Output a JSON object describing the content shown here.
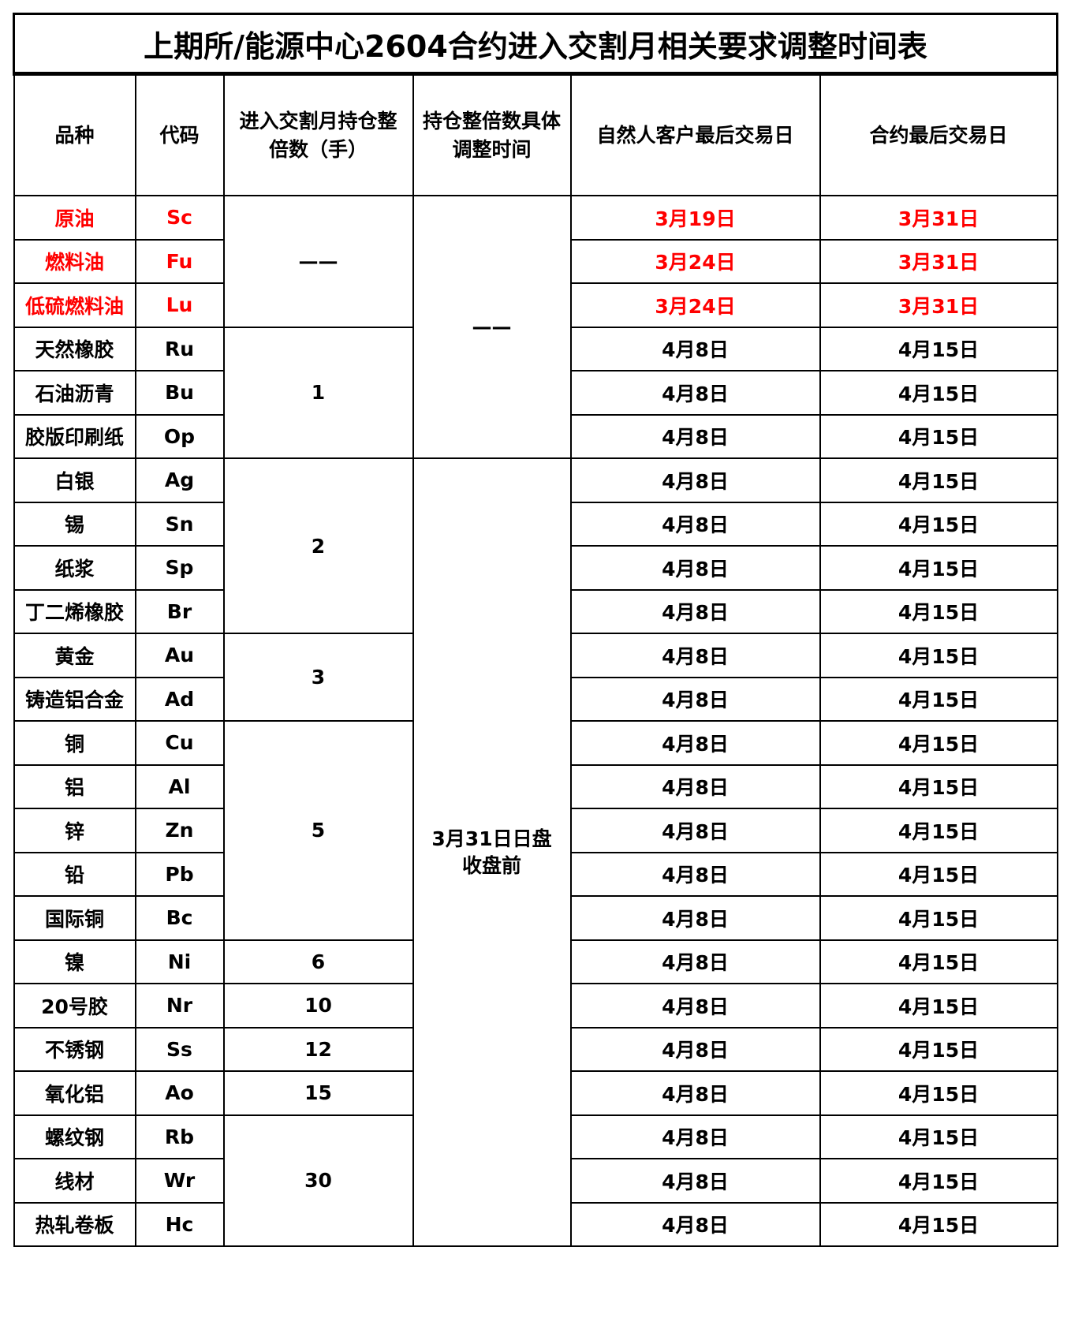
{
  "title": "上期所/能源中心2604合约进入交割月相关要求调整时间表",
  "headers": [
    "品种",
    "代码",
    "进入交割月持仓整倍数（手）",
    "持仓整倍数具体调整时间",
    "自然人客户最后交易日",
    "合约最后交易日"
  ],
  "highlight_color": "#ff0000",
  "rows": [
    {
      "name": "原油",
      "code": "Sc",
      "natural_last": "3月19日",
      "contract_last": "3月31日",
      "highlight": true
    },
    {
      "name": "燃料油",
      "code": "Fu",
      "natural_last": "3月24日",
      "contract_last": "3月31日",
      "highlight": true
    },
    {
      "name": "低硫燃料油",
      "code": "Lu",
      "natural_last": "3月24日",
      "contract_last": "3月31日",
      "highlight": true
    },
    {
      "name": "天然橡胶",
      "code": "Ru",
      "natural_last": "4月8日",
      "contract_last": "4月15日"
    },
    {
      "name": "石油沥青",
      "code": "Bu",
      "natural_last": "4月8日",
      "contract_last": "4月15日"
    },
    {
      "name": "胶版印刷纸",
      "code": "Op",
      "natural_last": "4月8日",
      "contract_last": "4月15日"
    },
    {
      "name": "白银",
      "code": "Ag",
      "natural_last": "4月8日",
      "contract_last": "4月15日"
    },
    {
      "name": "锡",
      "code": "Sn",
      "natural_last": "4月8日",
      "contract_last": "4月15日"
    },
    {
      "name": "纸浆",
      "code": "Sp",
      "natural_last": "4月8日",
      "contract_last": "4月15日"
    },
    {
      "name": "丁二烯橡胶",
      "code": "Br",
      "natural_last": "4月8日",
      "contract_last": "4月15日"
    },
    {
      "name": "黄金",
      "code": "Au",
      "natural_last": "4月8日",
      "contract_last": "4月15日"
    },
    {
      "name": "铸造铝合金",
      "code": "Ad",
      "natural_last": "4月8日",
      "contract_last": "4月15日"
    },
    {
      "name": "铜",
      "code": "Cu",
      "natural_last": "4月8日",
      "contract_last": "4月15日"
    },
    {
      "name": "铝",
      "code": "Al",
      "natural_last": "4月8日",
      "contract_last": "4月15日"
    },
    {
      "name": "锌",
      "code": "Zn",
      "natural_last": "4月8日",
      "contract_last": "4月15日"
    },
    {
      "name": "铅",
      "code": "Pb",
      "natural_last": "4月8日",
      "contract_last": "4月15日"
    },
    {
      "name": "国际铜",
      "code": "Bc",
      "natural_last": "4月8日",
      "contract_last": "4月15日"
    },
    {
      "name": "镍",
      "code": "Ni",
      "natural_last": "4月8日",
      "contract_last": "4月15日"
    },
    {
      "name": "20号胶",
      "code": "Nr",
      "natural_last": "4月8日",
      "contract_last": "4月15日"
    },
    {
      "name": "不锈钢",
      "code": "Ss",
      "natural_last": "4月8日",
      "contract_last": "4月15日"
    },
    {
      "name": "氧化铝",
      "code": "Ao",
      "natural_last": "4月8日",
      "contract_last": "4月15日"
    },
    {
      "name": "螺纹钢",
      "code": "Rb",
      "natural_last": "4月8日",
      "contract_last": "4月15日"
    },
    {
      "name": "线材",
      "code": "Wr",
      "natural_last": "4月8日",
      "contract_last": "4月15日"
    },
    {
      "name": "热轧卷板",
      "code": "Hc",
      "natural_last": "4月8日",
      "contract_last": "4月15日"
    }
  ],
  "multiple_groups": [
    {
      "start": 0,
      "span": 3,
      "value": "——"
    },
    {
      "start": 3,
      "span": 3,
      "value": "1"
    },
    {
      "start": 6,
      "span": 4,
      "value": "2"
    },
    {
      "start": 10,
      "span": 2,
      "value": "3"
    },
    {
      "start": 12,
      "span": 5,
      "value": "5"
    },
    {
      "start": 17,
      "span": 1,
      "value": "6"
    },
    {
      "start": 18,
      "span": 1,
      "value": "10"
    },
    {
      "start": 19,
      "span": 1,
      "value": "12"
    },
    {
      "start": 20,
      "span": 1,
      "value": "15"
    },
    {
      "start": 21,
      "span": 3,
      "value": "30"
    }
  ],
  "adjust_groups": [
    {
      "start": 0,
      "span": 6,
      "value": "——"
    },
    {
      "start": 6,
      "span": 18,
      "value": "3月31日日盘收盘前"
    }
  ]
}
